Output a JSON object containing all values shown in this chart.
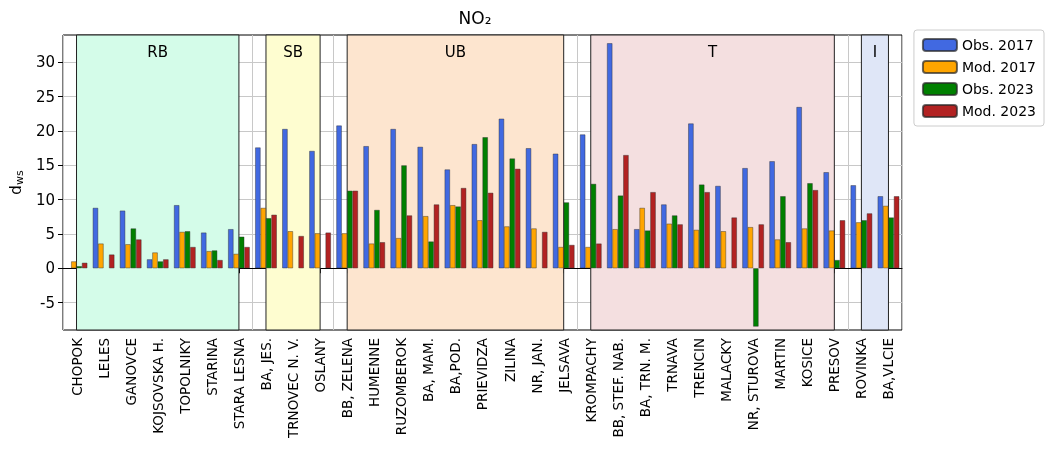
{
  "chart_data": {
    "type": "bar",
    "title": "NO₂",
    "ylabel": "d$_{ws}$",
    "categories": [
      "CHOPOK",
      "LELES",
      "GANOVCE",
      "KOJSOVSKA H.",
      "TOPOLNIKY",
      "STARINA",
      "STARA LESNA",
      "BA, JES.",
      "TRNOVEC N. V.",
      "OSLANY",
      "BB, ZELENA",
      "HUMENNE",
      "RUZOMBEROK",
      "BA, MAM.",
      "BA,POD.",
      "PRIEVIDZA",
      "ZILINA",
      "NR, JAN.",
      "JELSAVA",
      "KROMPACHY",
      "BB, STEF. NAB.",
      "BA, TRN. M.",
      "TRNAVA",
      "TRENCIN",
      "MALACKY",
      "NR, STUROVA",
      "MARTIN",
      "KOSICE",
      "PRESOV",
      "ROVINKA",
      "BA,VLCIE"
    ],
    "series": [
      {
        "name": "Obs. 2017",
        "color": "#4169e1",
        "values": [
          null,
          8.8,
          8.4,
          1.3,
          9.2,
          5.2,
          5.7,
          17.6,
          20.3,
          17.1,
          20.8,
          17.8,
          20.3,
          17.7,
          14.4,
          18.1,
          21.8,
          17.5,
          16.7,
          19.5,
          32.8,
          5.7,
          9.3,
          21.1,
          12.0,
          14.6,
          15.6,
          23.5,
          14.0,
          12.1,
          10.5
        ]
      },
      {
        "name": "Mod. 2017",
        "color": "#ffa500",
        "values": [
          1.0,
          3.6,
          3.5,
          2.3,
          5.3,
          2.5,
          2.1,
          8.8,
          5.4,
          5.1,
          5.1,
          3.6,
          4.4,
          7.6,
          9.2,
          7.0,
          6.1,
          5.8,
          3.1,
          3.1,
          5.7,
          8.8,
          6.5,
          5.6,
          5.4,
          6.0,
          4.2,
          5.8,
          5.5,
          6.7,
          9.1
        ]
      },
      {
        "name": "Obs. 2023",
        "color": "#008000",
        "values": [
          0.3,
          null,
          5.8,
          1.0,
          5.4,
          2.6,
          4.6,
          7.3,
          null,
          null,
          11.3,
          8.5,
          15.0,
          3.9,
          9.0,
          19.1,
          16.0,
          null,
          9.6,
          12.3,
          10.6,
          5.5,
          7.7,
          12.2,
          null,
          -8.5,
          10.5,
          12.4,
          1.2,
          7.0,
          7.4
        ]
      },
      {
        "name": "Mod. 2023",
        "color": "#b22222",
        "values": [
          0.8,
          2.0,
          4.2,
          1.3,
          3.1,
          1.2,
          3.1,
          7.8,
          4.7,
          5.2,
          11.3,
          3.8,
          7.7,
          9.3,
          11.7,
          11.0,
          14.5,
          5.3,
          3.4,
          3.6,
          16.5,
          11.1,
          6.4,
          11.1,
          7.4,
          6.4,
          3.8,
          11.4,
          7.0,
          8.0,
          10.5
        ]
      }
    ],
    "ylim": [
      -9,
      34
    ],
    "yticks": [
      -5,
      0,
      5,
      10,
      15,
      20,
      25,
      30
    ],
    "grid": true,
    "legend": "top right",
    "bands": [
      {
        "axis": "x",
        "from": "CHOPOK",
        "to": "STARA LESNA",
        "label": "RB",
        "color": "#d4fce9"
      },
      {
        "axis": "x",
        "from": "BA, JES.",
        "to": "OSLANY",
        "label": "SB",
        "color": "#fefdd0"
      },
      {
        "axis": "x",
        "from": "BB, ZELENA",
        "to": "JELSAVA",
        "label": "UB",
        "color": "#fde5cf"
      },
      {
        "axis": "x",
        "from": "KROMPACHY",
        "to": "PRESOV",
        "label": "T",
        "color": "#f4dfe0"
      },
      {
        "axis": "x",
        "from": "ROVINKA",
        "to": "BA,VLCIE",
        "label": "I",
        "color": "#dfe6f7"
      }
    ]
  }
}
